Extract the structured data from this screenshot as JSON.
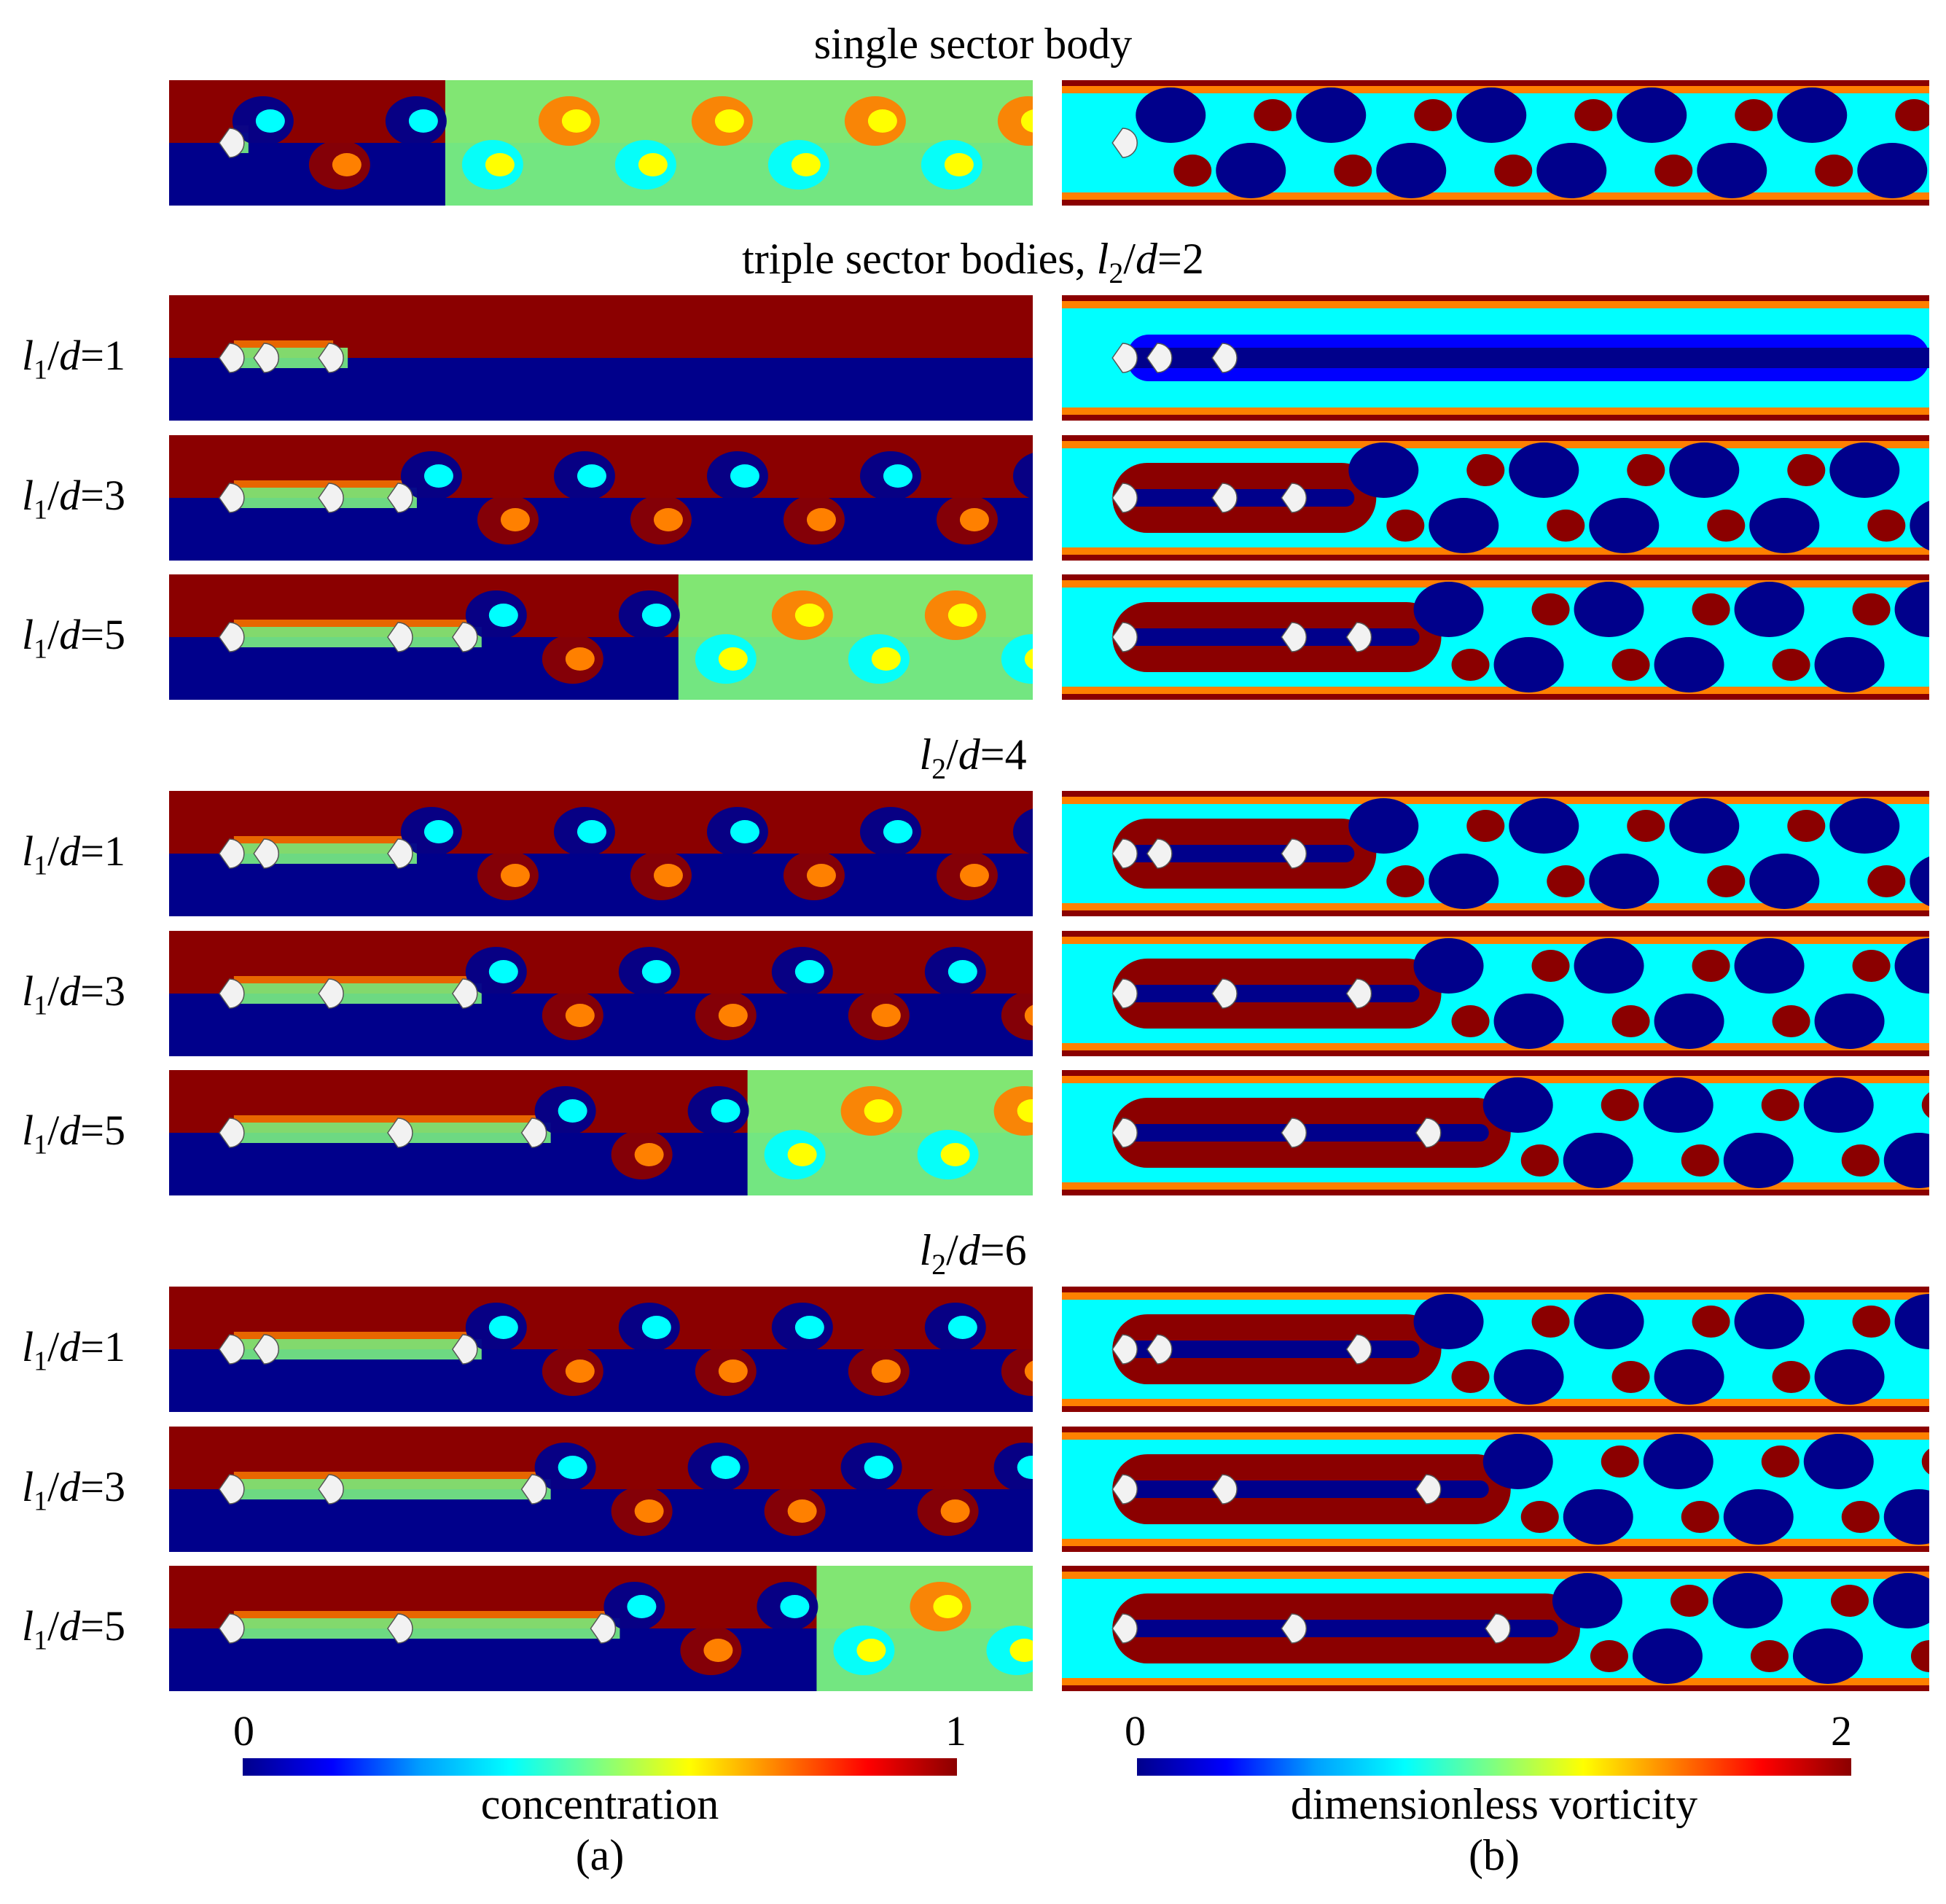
{
  "titles": {
    "single": "single sector body",
    "triple_prefix": "triple sector bodies, ",
    "l2_sym": "l",
    "l2_sub": "2",
    "d_sym": "d",
    "eq2": "=2",
    "eq4": "=4",
    "eq6": "=6"
  },
  "row_label": {
    "l": "l",
    "sub": "1",
    "slash": "/",
    "d": "d"
  },
  "rows": [
    {
      "eq": "=1"
    },
    {
      "eq": "=3"
    },
    {
      "eq": "=5"
    },
    {
      "eq": "=1"
    },
    {
      "eq": "=3"
    },
    {
      "eq": "=5"
    },
    {
      "eq": "=1"
    },
    {
      "eq": "=3"
    },
    {
      "eq": "=5"
    }
  ],
  "colorbars": {
    "a": {
      "min": "0",
      "max": "1",
      "label": "concentration",
      "caption": "(a)"
    },
    "b": {
      "min": "0",
      "max": "2",
      "label": "dimensionless vorticity",
      "caption": "(b)"
    }
  },
  "colors": {
    "jet": [
      "#00008b",
      "#0000ff",
      "#00a0ff",
      "#00ffff",
      "#80ff80",
      "#ffff00",
      "#ff8000",
      "#ff0000",
      "#8b0000"
    ]
  }
}
